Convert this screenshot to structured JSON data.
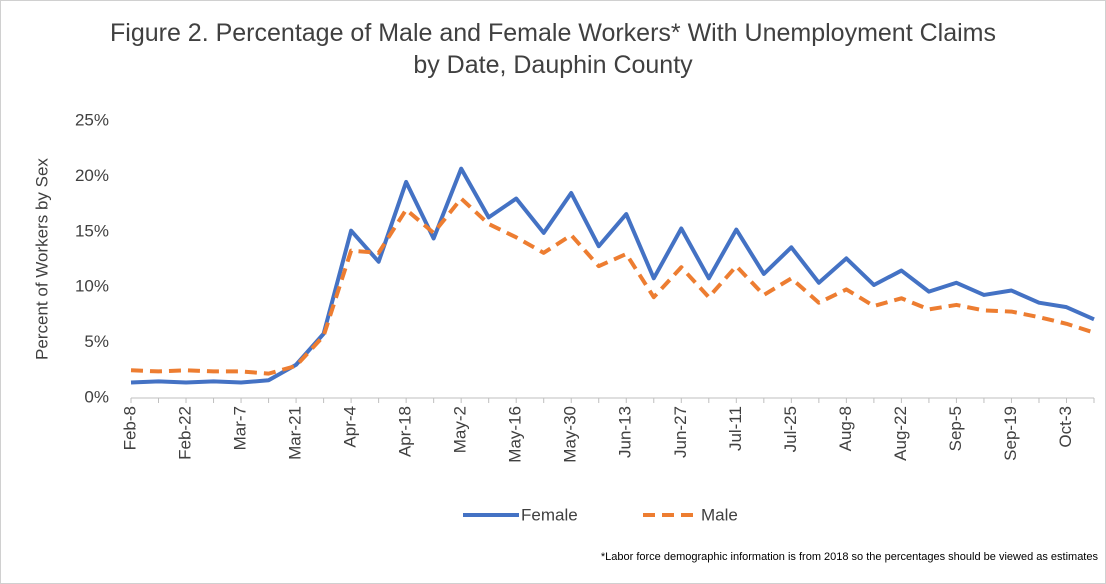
{
  "chart_data": {
    "type": "line",
    "title": "Figure 2. Percentage of Male and Female Workers* With Unemployment Claims by Date, Dauphin County",
    "y_axis_label": "Percent of Workers by Sex",
    "footnote": "*Labor force demographic information is from 2018 so the percentages should be viewed as estimates",
    "categories": [
      "Feb-8",
      null,
      "Feb-22",
      null,
      "Mar-7",
      null,
      "Mar-21",
      null,
      "Apr-4",
      null,
      "Apr-18",
      null,
      "May-2",
      null,
      "May-16",
      null,
      "May-30",
      null,
      "Jun-13",
      null,
      "Jun-27",
      null,
      "Jul-11",
      null,
      "Jul-25",
      null,
      "Aug-8",
      null,
      "Aug-22",
      null,
      "Sep-5",
      null,
      "Sep-19",
      null,
      "Oct-3",
      null
    ],
    "series": [
      {
        "name": "Female",
        "color": "#4472c4",
        "dash": false,
        "values": [
          1.4,
          1.5,
          1.4,
          1.5,
          1.4,
          1.6,
          3.0,
          5.8,
          15.1,
          12.3,
          19.5,
          14.4,
          20.7,
          16.3,
          18.0,
          14.9,
          18.5,
          13.7,
          16.6,
          10.8,
          15.3,
          10.8,
          15.2,
          11.2,
          13.6,
          10.4,
          12.6,
          10.2,
          11.5,
          9.6,
          10.4,
          9.3,
          9.7,
          8.6,
          8.2,
          7.1
        ]
      },
      {
        "name": "Male",
        "color": "#ed7d31",
        "dash": true,
        "values": [
          2.5,
          2.4,
          2.5,
          2.4,
          2.4,
          2.2,
          2.9,
          5.6,
          13.3,
          13.1,
          17.0,
          14.9,
          18.0,
          15.7,
          14.5,
          13.1,
          14.7,
          11.9,
          13.0,
          9.1,
          11.8,
          9.1,
          11.9,
          9.3,
          10.8,
          8.6,
          9.8,
          8.3,
          9.0,
          8.0,
          8.4,
          7.9,
          7.8,
          7.3,
          6.7,
          5.9
        ]
      }
    ],
    "ylim": [
      0,
      25
    ],
    "yticks": [
      {
        "value": 0,
        "label": "0%"
      },
      {
        "value": 5,
        "label": "5%"
      },
      {
        "value": 10,
        "label": "10%"
      },
      {
        "value": 15,
        "label": "15%"
      },
      {
        "value": 20,
        "label": "20%"
      },
      {
        "value": 25,
        "label": "25%"
      }
    ],
    "grid": false,
    "legend": "bottom"
  }
}
